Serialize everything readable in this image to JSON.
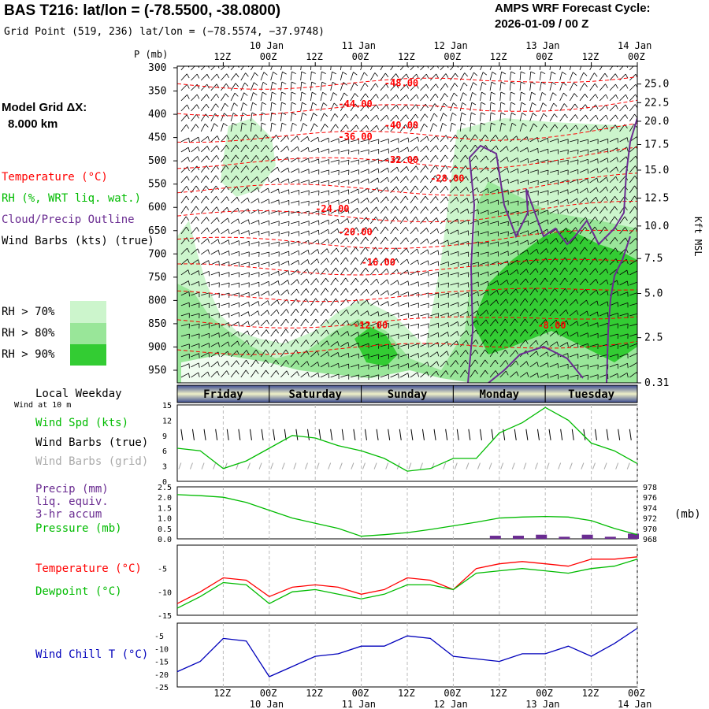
{
  "header": {
    "title": "BAS T216:  lat/lon = (-78.5500, -38.0800)",
    "grid_point": "Grid Point (519, 236) lat/lon = (−78.5574, −37.9748)",
    "cycle_label": "AMPS WRF Forecast Cycle:",
    "cycle_value": "2026-01-09 / 00  Z",
    "model_grid_label": "Model Grid ΔX:",
    "model_grid_value": "8.000 km"
  },
  "legend": {
    "temperature": "Temperature (°C)",
    "rh": "RH (%, WRT liq. wat.)",
    "cloud": "Cloud/Precip Outline",
    "wind_barbs": "Wind Barbs (kts) (true)",
    "rh70": "RH > 70%",
    "rh80": "RH > 80%",
    "rh90": "RH > 90%",
    "local_weekday": "Local Weekday",
    "wind_at_10m": "Wind at 10 m",
    "wind_spd": "Wind Spd (kts)",
    "barbs_true": "Wind Barbs (true)",
    "barbs_grid": "Wind Barbs (grid)",
    "precip1": "Precip (mm)",
    "precip2": "liq. equiv.",
    "precip3": "3-hr accum",
    "pressure": "Pressure (mb)",
    "temp2": "Temperature (°C)",
    "dewpoint": "Dewpoint (°C)",
    "windchill": "Wind Chill T (°C)",
    "mb_unit": "(mb)"
  },
  "colors": {
    "temp": "#ff0000",
    "rh": "#00bb00",
    "cloud": "#6a2c91",
    "windchill": "#0000bb",
    "grid_gray": "#aaaaaa",
    "rh70": "#ccf5cc",
    "rh80": "#99e699",
    "rh90": "#33cc33"
  },
  "chart_data": {
    "type": "line",
    "time_axis": {
      "hours": [
        12,
        24,
        36,
        48,
        60,
        72,
        84,
        96,
        108,
        120
      ],
      "top_tick_labels": [
        "12Z",
        "00Z",
        "12Z",
        "00Z",
        "12Z",
        "00Z",
        "12Z",
        "00Z",
        "12Z",
        "00Z"
      ],
      "date_labels": [
        "10 Jan",
        "11 Jan",
        "12 Jan",
        "13 Jan",
        "14 Jan"
      ],
      "date_hours": [
        24,
        48,
        72,
        96,
        120
      ],
      "range_hours": [
        0,
        120
      ]
    },
    "weekdays": [
      "Friday",
      "Saturday",
      "Sunday",
      "Monday",
      "Tuesday"
    ],
    "cross_section": {
      "pressure_label": "P (mb)",
      "pressure_levels": [
        300,
        350,
        400,
        450,
        500,
        550,
        600,
        650,
        700,
        750,
        800,
        850,
        900,
        950
      ],
      "height_label": "Kft MSL",
      "height_ticks": [
        {
          "label": "25.0",
          "p": 335
        },
        {
          "label": "22.5",
          "p": 375
        },
        {
          "label": "20.0",
          "p": 415
        },
        {
          "label": "17.5",
          "p": 465
        },
        {
          "label": "15.0",
          "p": 520
        },
        {
          "label": "12.5",
          "p": 580
        },
        {
          "label": "10.0",
          "p": 640
        },
        {
          "label": "7.5",
          "p": 710
        },
        {
          "label": "5.0",
          "p": 785
        },
        {
          "label": "2.5",
          "p": 880
        },
        {
          "label": "0.31",
          "p": 985
        }
      ],
      "temperature_labels": [
        {
          "label": "-48.00",
          "h": 54,
          "p": 340
        },
        {
          "label": "-44.00",
          "h": 42,
          "p": 385
        },
        {
          "label": "-40.00",
          "h": 54,
          "p": 430
        },
        {
          "label": "-36.00",
          "h": 42,
          "p": 455
        },
        {
          "label": "-32.00",
          "h": 54,
          "p": 505
        },
        {
          "label": "-28.00",
          "h": 66,
          "p": 545
        },
        {
          "label": "-24.00",
          "h": 36,
          "p": 610
        },
        {
          "label": "-20.00",
          "h": 42,
          "p": 660
        },
        {
          "label": "-16.00",
          "h": 48,
          "p": 725
        },
        {
          "label": "-12.00",
          "h": 46,
          "p": 860
        },
        {
          "label": "-8.00",
          "h": 94,
          "p": 860
        }
      ],
      "temperature_isotherm_levels": [
        -48,
        -44,
        -40,
        -36,
        -32,
        -28,
        -24,
        -20,
        -16,
        -12,
        -8
      ]
    },
    "wind_speed": {
      "ylabel": "Wind Spd (kts)",
      "ylim": [
        0,
        15
      ],
      "yticks": [
        0,
        3,
        6,
        9,
        12,
        15
      ],
      "x": [
        0,
        6,
        12,
        18,
        24,
        30,
        36,
        42,
        48,
        54,
        60,
        66,
        72,
        78,
        84,
        90,
        96,
        102,
        108,
        114,
        120
      ],
      "values": [
        6.5,
        6.0,
        2.5,
        4.0,
        6.5,
        9.0,
        8.5,
        7.0,
        6.0,
        4.5,
        2.0,
        2.5,
        4.5,
        4.5,
        9.5,
        11.5,
        14.5,
        12.0,
        7.5,
        6.0,
        3.5
      ]
    },
    "pressure_precip": {
      "precip_ylim": [
        0,
        2.5
      ],
      "precip_yticks": [
        0.0,
        0.5,
        1.0,
        1.5,
        2.0,
        2.5
      ],
      "pressure_ylim": [
        968,
        978
      ],
      "pressure_yticks": [
        968,
        970,
        972,
        974,
        976,
        978
      ],
      "x": [
        0,
        6,
        12,
        18,
        24,
        30,
        36,
        42,
        48,
        54,
        60,
        66,
        72,
        78,
        84,
        90,
        96,
        102,
        108,
        114,
        120
      ],
      "pressure": [
        976.5,
        976.3,
        976,
        975,
        973.5,
        972,
        971,
        970,
        968.5,
        968.8,
        969.2,
        969.8,
        970.5,
        971.2,
        972,
        972.2,
        972.3,
        972.2,
        971.5,
        970,
        968.8
      ],
      "precip": [
        0,
        0,
        0,
        0,
        0,
        0,
        0,
        0,
        0,
        0,
        0,
        0,
        0,
        0,
        0.15,
        0.15,
        0.2,
        0.1,
        0.2,
        0.1,
        0.25
      ]
    },
    "temp_dew": {
      "ylim": [
        -15,
        0
      ],
      "yticks": [
        -15,
        -10,
        -5
      ],
      "x": [
        0,
        6,
        12,
        18,
        24,
        30,
        36,
        42,
        48,
        54,
        60,
        66,
        72,
        78,
        84,
        90,
        96,
        102,
        108,
        114,
        120
      ],
      "temperature": [
        -12.5,
        -10,
        -7,
        -7.5,
        -11,
        -9,
        -8.5,
        -9,
        -10.5,
        -9.5,
        -7,
        -7.5,
        -9.5,
        -5,
        -4,
        -3.5,
        -4,
        -4.5,
        -3,
        -3,
        -2.5
      ],
      "dewpoint": [
        -13.5,
        -11,
        -8,
        -8.5,
        -12.5,
        -10,
        -9.5,
        -10.5,
        -11.5,
        -10.5,
        -8.5,
        -8.5,
        -9.5,
        -6,
        -5.5,
        -5,
        -5.5,
        -6,
        -5,
        -4.5,
        -3
      ]
    },
    "wind_chill": {
      "ylim": [
        -25,
        0
      ],
      "yticks": [
        -25,
        -20,
        -15,
        -10,
        -5
      ],
      "x": [
        0,
        6,
        12,
        18,
        24,
        30,
        36,
        42,
        48,
        54,
        60,
        66,
        72,
        78,
        84,
        90,
        96,
        102,
        108,
        114,
        120
      ],
      "values": [
        -19,
        -15,
        -6,
        -7,
        -21,
        -17,
        -13,
        -12,
        -9,
        -9,
        -5,
        -6,
        -13,
        -14,
        -15,
        -12,
        -12,
        -9,
        -13,
        -8,
        -2
      ]
    }
  }
}
